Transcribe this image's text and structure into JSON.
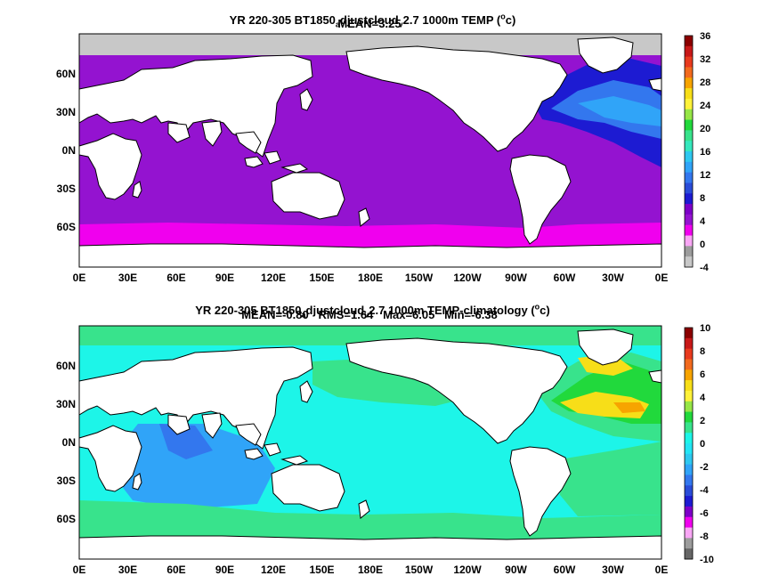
{
  "panels": [
    {
      "title_prefix": "YR 220-305 BT1850",
      "title_sub1": "a",
      "title_mid": "djustcloud",
      "title_sub2": "v",
      "title_suffix": "2.7 1000m TEMP (",
      "title_sup": "o",
      "title_end": "c)",
      "stats": "MEAN=3.25",
      "colorbar_labels": [
        "36",
        "32",
        "28",
        "24",
        "20",
        "16",
        "12",
        "8",
        "4",
        "0",
        "-4"
      ],
      "colorbar_colors": [
        "#8b0000",
        "#c81818",
        "#e83a1e",
        "#f26a1e",
        "#f7a400",
        "#f7de18",
        "#fff23a",
        "#96e646",
        "#21d93c",
        "#38e38c",
        "#35e8be",
        "#2ec8f0",
        "#30a4f8",
        "#3377ee",
        "#2a4cd8",
        "#1d1bd2",
        "#7d00c8",
        "#9413d0",
        "#f000ee",
        "#f9a6f5",
        "#9c9c9c",
        "#c8c8c8"
      ]
    },
    {
      "title_prefix": "YR 220-305 BT1850",
      "title_sub1": "a",
      "title_mid": "djustcloud",
      "title_sub2": "v",
      "title_suffix": "2.7 1000m TEMP-climatology (",
      "title_sup": "o",
      "title_end": "c)",
      "stats": "MEAN=-0.80   RMS=1.64   Max=6.05   Min=-6.38",
      "colorbar_labels": [
        "10",
        "8",
        "6",
        "4",
        "2",
        "0",
        "-2",
        "-4",
        "-6",
        "-8",
        "-10"
      ],
      "colorbar_colors": [
        "#8b0000",
        "#c81818",
        "#e83a1e",
        "#f26a1e",
        "#f7a400",
        "#f7de18",
        "#fff23a",
        "#96e646",
        "#21d93c",
        "#38e38c",
        "#1df5e8",
        "#23e5f5",
        "#2ec8f0",
        "#30a4f8",
        "#3377ee",
        "#2a4cd8",
        "#1d1bd2",
        "#7d00c8",
        "#f000ee",
        "#f9a6f5",
        "#9c9c9c",
        "#666666"
      ]
    }
  ],
  "axis": {
    "lon_labels": [
      "0E",
      "30E",
      "60E",
      "90E",
      "120E",
      "150E",
      "180E",
      "150W",
      "120W",
      "90W",
      "60W",
      "30W",
      "0E"
    ],
    "lat_labels": [
      "60N",
      "30N",
      "0N",
      "30S",
      "60S"
    ]
  },
  "colors": {
    "land": "#ffffff",
    "ice": "#c8c8c8",
    "top_deep_purple": "#9413d0",
    "top_magenta": "#f000ee",
    "top_blue": "#3377ee",
    "top_dark_blue": "#1d1bd2",
    "bot_cyan": "#1df5e8",
    "bot_green": "#38e38c",
    "bot_light_blue": "#30a4f8",
    "bot_blue": "#3377ee",
    "bot_yellow": "#f7de18",
    "bot_orange": "#f7a400"
  }
}
